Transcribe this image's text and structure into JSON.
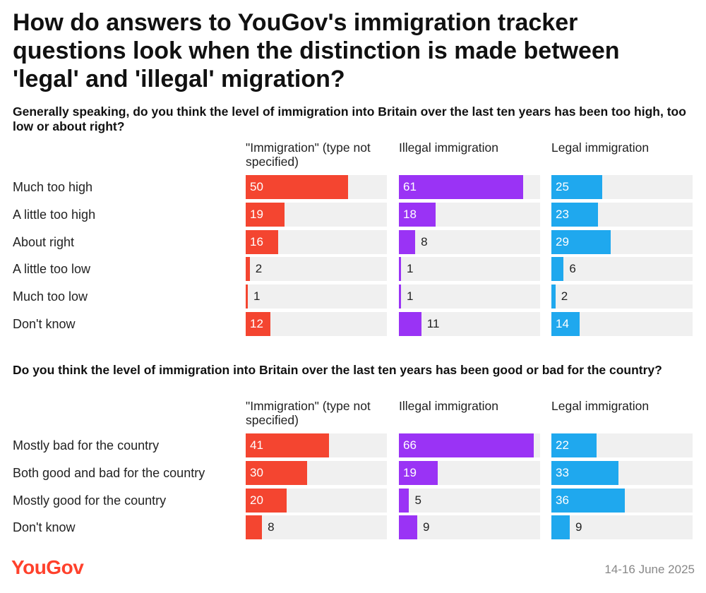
{
  "title": "How do answers to YouGov's immigration tracker questions look when the distinction is made between 'legal' and 'illegal' migration?",
  "date": "14-16 June 2025",
  "logo": "YouGov",
  "colors": {
    "immigration": "#f44530",
    "illegal": "#9a33f5",
    "legal": "#1fa8ee",
    "track": "#f0f0f0"
  },
  "chart_data": [
    {
      "type": "bar",
      "title": "Generally speaking, do you think the level of immigration into Britain over the last ten years has been too high, too low or about right?",
      "categories": [
        "Much too high",
        "A little too high",
        "About right",
        "A little too low",
        "Much too low",
        "Don't know"
      ],
      "series": [
        {
          "name": "\"Immigration\" (type not specified)",
          "color": "#f44530",
          "values": [
            50,
            19,
            16,
            2,
            1,
            12
          ]
        },
        {
          "name": "Illegal immigration",
          "color": "#9a33f5",
          "values": [
            61,
            18,
            8,
            1,
            1,
            11
          ]
        },
        {
          "name": "Legal immigration",
          "color": "#1fa8ee",
          "values": [
            25,
            23,
            29,
            6,
            2,
            14
          ]
        }
      ],
      "xlim": [
        0,
        66
      ]
    },
    {
      "type": "bar",
      "title": "Do you think the level of immigration into Britain over the last ten years has been good or bad for the country?",
      "categories": [
        "Mostly bad for the country",
        "Both good and bad for the country",
        "Mostly good for the country",
        "Don't know"
      ],
      "series": [
        {
          "name": "\"Immigration\" (type not specified)",
          "color": "#f44530",
          "values": [
            41,
            30,
            20,
            8
          ]
        },
        {
          "name": "Illegal immigration",
          "color": "#9a33f5",
          "values": [
            66,
            19,
            5,
            9
          ]
        },
        {
          "name": "Legal immigration",
          "color": "#1fa8ee",
          "values": [
            22,
            33,
            36,
            9
          ]
        }
      ],
      "xlim": [
        0,
        66
      ]
    }
  ]
}
